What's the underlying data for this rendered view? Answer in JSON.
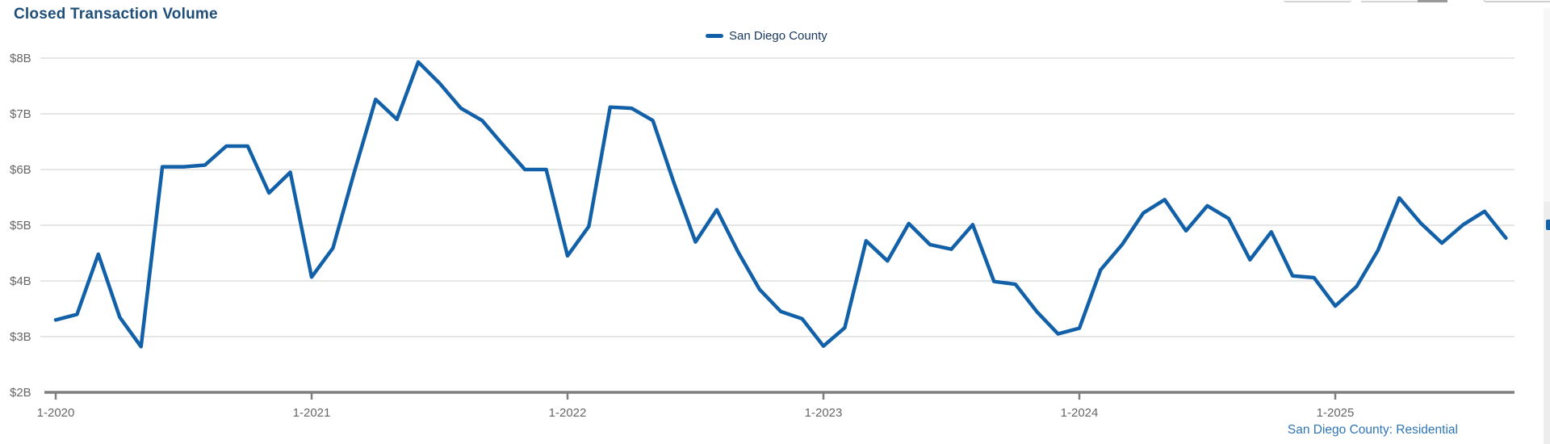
{
  "title": "Closed Transaction Volume",
  "legend": {
    "label": "San Diego County"
  },
  "footer": {
    "label": "San Diego County: Residential"
  },
  "colors": {
    "line": "#1261a8",
    "title_text": "#1f4e79",
    "legend_text": "#17365d",
    "axis_text": "#666666",
    "gridline": "#cccccc",
    "axis_line": "#7f7f7f",
    "footer_text": "#2e75b6"
  },
  "chart_data": {
    "type": "line",
    "title": "Closed Transaction Volume",
    "y_unit": "USD billions",
    "ylim": [
      2,
      8
    ],
    "grid": "horizontal",
    "legend_position": "top-center",
    "y_tick_labels": [
      "$8B",
      "$7B",
      "$6B",
      "$5B",
      "$4B",
      "$3B",
      "$2B"
    ],
    "x_tick_labels": [
      "1-2020",
      "1-2021",
      "1-2022",
      "1-2023",
      "1-2024",
      "1-2025"
    ],
    "x": [
      "1-2020",
      "2-2020",
      "3-2020",
      "4-2020",
      "5-2020",
      "6-2020",
      "7-2020",
      "8-2020",
      "9-2020",
      "10-2020",
      "11-2020",
      "12-2020",
      "1-2021",
      "2-2021",
      "3-2021",
      "4-2021",
      "5-2021",
      "6-2021",
      "7-2021",
      "8-2021",
      "9-2021",
      "10-2021",
      "11-2021",
      "12-2021",
      "1-2022",
      "2-2022",
      "3-2022",
      "4-2022",
      "5-2022",
      "6-2022",
      "7-2022",
      "8-2022",
      "9-2022",
      "10-2022",
      "11-2022",
      "12-2022",
      "1-2023",
      "2-2023",
      "3-2023",
      "4-2023",
      "5-2023",
      "6-2023",
      "7-2023",
      "8-2023",
      "9-2023",
      "10-2023",
      "11-2023",
      "12-2023",
      "1-2024",
      "2-2024",
      "3-2024",
      "4-2024",
      "5-2024",
      "6-2024",
      "7-2024",
      "8-2024",
      "9-2024",
      "10-2024",
      "11-2024",
      "12-2024",
      "1-2025",
      "2-2025",
      "3-2025",
      "4-2025",
      "5-2025",
      "6-2025",
      "7-2025",
      "8-2025",
      "9-2025"
    ],
    "series": [
      {
        "name": "San Diego County",
        "values": [
          3.3,
          3.4,
          4.48,
          3.35,
          2.82,
          6.05,
          6.05,
          6.08,
          6.42,
          6.42,
          5.58,
          5.95,
          4.07,
          4.59,
          5.95,
          7.26,
          6.9,
          7.93,
          7.55,
          7.1,
          6.88,
          6.43,
          6.0,
          6.0,
          4.45,
          4.98,
          7.12,
          7.1,
          6.88,
          5.75,
          4.7,
          5.28,
          4.52,
          3.85,
          3.45,
          3.32,
          2.83,
          3.16,
          4.72,
          4.36,
          5.03,
          4.65,
          4.57,
          5.01,
          3.99,
          3.94,
          3.45,
          3.05,
          3.15,
          4.2,
          4.65,
          5.22,
          5.46,
          4.9,
          5.35,
          5.12,
          4.38,
          4.88,
          4.09,
          4.06,
          3.55,
          3.9,
          4.55,
          5.49,
          5.04,
          4.68,
          5.01,
          5.25,
          4.77
        ]
      }
    ]
  }
}
